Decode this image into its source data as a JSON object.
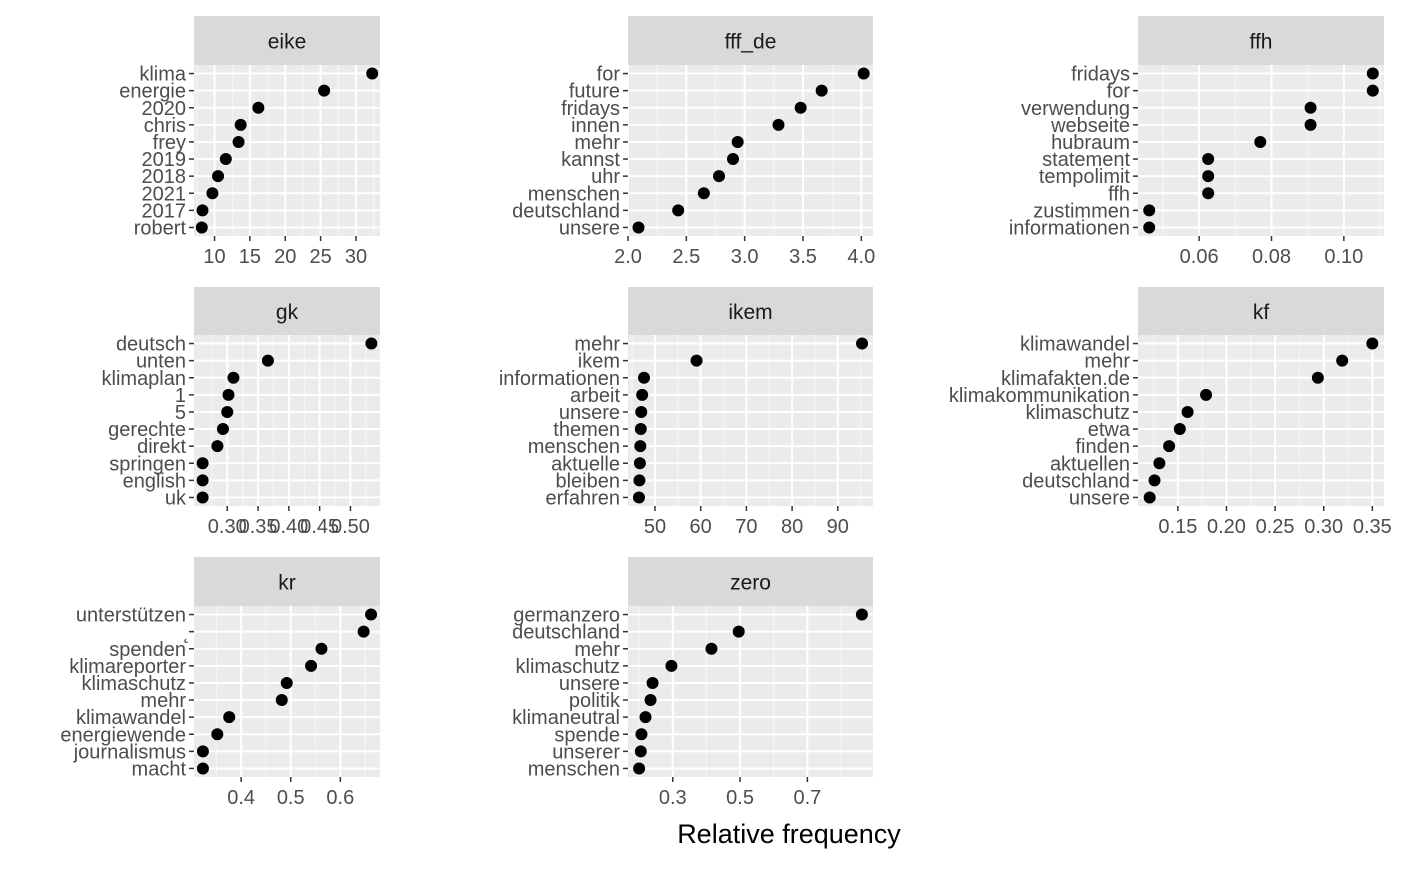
{
  "chart_data": {
    "type": "scatter",
    "xlabel": "Relative frequency",
    "panels": [
      {
        "name": "eike",
        "categories": [
          "klima",
          "energie",
          "2020",
          "chris",
          "frey",
          "2019",
          "2018",
          "2021",
          "2017",
          "robert"
        ],
        "values": [
          32.3,
          25.5,
          16.2,
          13.7,
          13.4,
          11.6,
          10.5,
          9.7,
          8.3,
          8.2
        ],
        "xlim": [
          7.1,
          33.4
        ],
        "xticks": [
          10,
          15,
          20,
          25,
          30
        ],
        "xtick_labels": [
          "10",
          "15",
          "20",
          "25",
          "30"
        ]
      },
      {
        "name": "fff_de",
        "categories": [
          "for",
          "future",
          "fridays",
          "innen",
          "mehr",
          "kannst",
          "uhr",
          "menschen",
          "deutschland",
          "unsere"
        ],
        "values": [
          4.02,
          3.66,
          3.48,
          3.29,
          2.94,
          2.9,
          2.78,
          2.65,
          2.43,
          2.09
        ],
        "xlim": [
          2.0,
          4.1
        ],
        "xticks": [
          2.0,
          2.5,
          3.0,
          3.5,
          4.0
        ],
        "xtick_labels": [
          "2.0",
          "2.5",
          "3.0",
          "3.5",
          "4.0"
        ]
      },
      {
        "name": "ffh",
        "categories": [
          "fridays",
          "for",
          "verwendung",
          "webseite",
          "hubraum",
          "statement",
          "tempolimit",
          "ffh",
          "zustimmen",
          "informationen"
        ],
        "values": [
          0.108,
          0.108,
          0.0908,
          0.0908,
          0.0769,
          0.0625,
          0.0625,
          0.0625,
          0.0462,
          0.0462
        ],
        "xlim": [
          0.0431,
          0.1111
        ],
        "xticks": [
          0.06,
          0.08,
          0.1
        ],
        "xtick_labels": [
          "0.06",
          "0.08",
          "0.10"
        ]
      },
      {
        "name": "gk",
        "categories": [
          "deutsch",
          "unten",
          "klimaplan",
          "1",
          "5",
          "gerechte",
          "direkt",
          "springen",
          "english",
          "uk"
        ],
        "values": [
          0.534,
          0.366,
          0.31,
          0.302,
          0.3,
          0.293,
          0.284,
          0.26,
          0.26,
          0.26
        ],
        "xlim": [
          0.246,
          0.548
        ],
        "xticks": [
          0.3,
          0.35,
          0.4,
          0.45,
          0.5
        ],
        "xtick_labels": [
          "0.30",
          "0.35",
          "0.40",
          "0.45",
          "0.50"
        ]
      },
      {
        "name": "ikem",
        "categories": [
          "mehr",
          "ikem",
          "informationen",
          "arbeit",
          "unsere",
          "themen",
          "menschen",
          "aktuelle",
          "bleiben",
          "erfahren"
        ],
        "values": [
          95.3,
          59.1,
          47.6,
          47.2,
          47.0,
          46.9,
          46.8,
          46.7,
          46.6,
          46.5
        ],
        "xlim": [
          44.1,
          97.7
        ],
        "xticks": [
          50,
          60,
          70,
          80,
          90
        ],
        "xtick_labels": [
          "50",
          "60",
          "70",
          "80",
          "90"
        ]
      },
      {
        "name": "kf",
        "categories": [
          "klimawandel",
          "mehr",
          "klimafakten.de",
          "klimakommunikation",
          "klimaschutz",
          "etwa",
          "finden",
          "aktuellen",
          "deutschland",
          "unsere"
        ],
        "values": [
          0.35,
          0.319,
          0.294,
          0.179,
          0.16,
          0.152,
          0.141,
          0.131,
          0.126,
          0.121
        ],
        "xlim": [
          0.109,
          0.362
        ],
        "xticks": [
          0.15,
          0.2,
          0.25,
          0.3,
          0.35
        ],
        "xtick_labels": [
          "0.15",
          "0.20",
          "0.25",
          "0.30",
          "0.35"
        ]
      },
      {
        "name": "kr",
        "categories": [
          "unterstützen",
          " ̨",
          "spenden",
          "klimareporter",
          "klimaschutz",
          "mehr",
          "klimawandel",
          "energiewende",
          "journalismus",
          "macht"
        ],
        "values": [
          0.662,
          0.647,
          0.562,
          0.541,
          0.492,
          0.482,
          0.376,
          0.352,
          0.323,
          0.323
        ],
        "xlim": [
          0.305,
          0.68
        ],
        "xticks": [
          0.4,
          0.5,
          0.6
        ],
        "xtick_labels": [
          "0.4",
          "0.5",
          "0.6"
        ]
      },
      {
        "name": "zero",
        "categories": [
          "germanzero",
          "deutschland",
          "mehr",
          "klimaschutz",
          "unsere",
          "politik",
          "klimaneutral",
          "spende",
          "unserer",
          "menschen"
        ],
        "values": [
          0.862,
          0.496,
          0.415,
          0.296,
          0.24,
          0.234,
          0.219,
          0.207,
          0.205,
          0.2
        ],
        "xlim": [
          0.167,
          0.895
        ],
        "xticks": [
          0.3,
          0.5,
          0.7
        ],
        "xtick_labels": [
          "0.3",
          "0.5",
          "0.7"
        ]
      }
    ]
  }
}
